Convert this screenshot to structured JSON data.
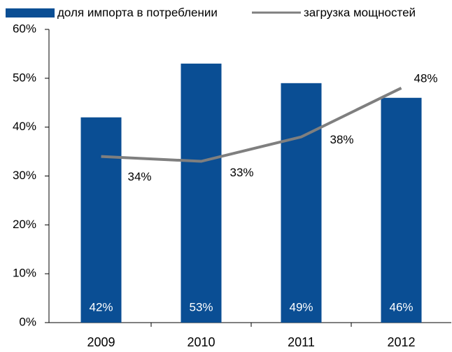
{
  "chart_data": {
    "type": "bar",
    "categories": [
      "2009",
      "2010",
      "2011",
      "2012"
    ],
    "series": [
      {
        "name": "доля импорта в потреблении",
        "type": "bar",
        "color": "#0a4e94",
        "values": [
          42,
          53,
          49,
          46
        ],
        "value_labels": [
          "42%",
          "53%",
          "49%",
          "46%"
        ]
      },
      {
        "name": "загрузка мощностей",
        "type": "line",
        "color": "#7f7f7f",
        "values": [
          34,
          33,
          38,
          48
        ],
        "value_labels": [
          "34%",
          "33%",
          "38%",
          "48%"
        ]
      }
    ],
    "ylim": [
      0,
      60
    ],
    "yticks": [
      {
        "value": 0,
        "label": "0%"
      },
      {
        "value": 10,
        "label": "10%"
      },
      {
        "value": 20,
        "label": "20%"
      },
      {
        "value": 30,
        "label": "30%"
      },
      {
        "value": 40,
        "label": "40%"
      },
      {
        "value": 50,
        "label": "50%"
      },
      {
        "value": 60,
        "label": "60%"
      }
    ],
    "grid": false
  }
}
